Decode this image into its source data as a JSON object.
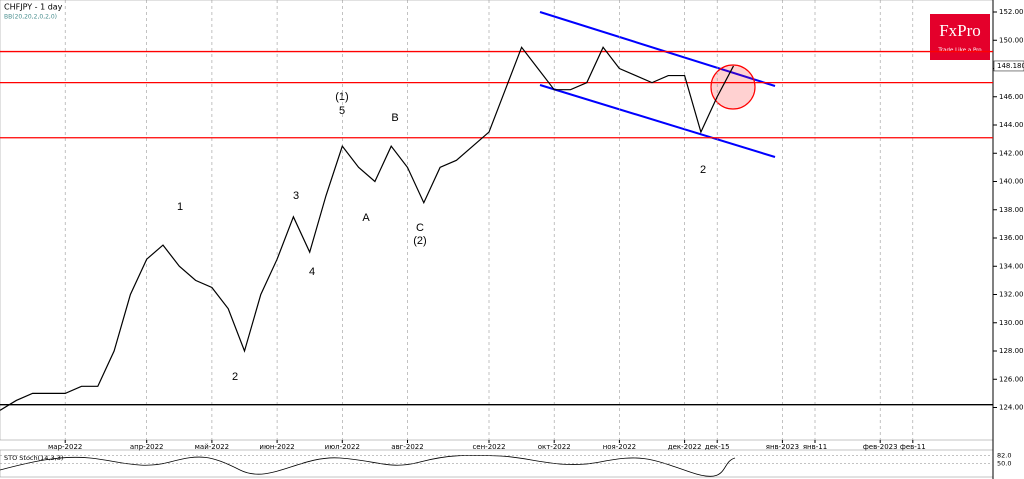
{
  "chart_data": {
    "type": "line",
    "title": "CHFJPY - 1 day",
    "subtitle": "BB(20,20,2,0,2,0)",
    "color": "#000000",
    "categories": [
      null,
      null,
      null,
      null,
      "мар-2022",
      null,
      null,
      null,
      null,
      "апр-2022",
      null,
      null,
      null,
      "май-2022",
      null,
      null,
      null,
      "июн-2022",
      null,
      null,
      null,
      "июл-2022",
      null,
      null,
      null,
      "авг-2022",
      null,
      null,
      null,
      null,
      "сен-2022",
      null,
      null,
      null,
      "окт-2022",
      null,
      null,
      null,
      "ноя-2022",
      null,
      null,
      null,
      "дек-2022",
      null,
      "дек-15",
      null,
      null,
      null,
      "янв-2023",
      null,
      "янв-11",
      null,
      null,
      null,
      "фев-2023",
      null,
      "фев-11",
      null,
      null,
      null,
      null
    ],
    "values": [
      123.8,
      124.5,
      125,
      125,
      125,
      125.5,
      125.5,
      128,
      132,
      134.5,
      135.5,
      134,
      133,
      132.5,
      131,
      128,
      132,
      134.5,
      137.5,
      135,
      139,
      142.5,
      141,
      140,
      142.5,
      141,
      138.5,
      141,
      141.5,
      142.5,
      143.5,
      146.5,
      149.5,
      148,
      146.5,
      146.5,
      147,
      149.5,
      148,
      147.5,
      147,
      147.5,
      147.5,
      143.5,
      146,
      148.18,
      null,
      null,
      null,
      null,
      null,
      null,
      null,
      null,
      null,
      null,
      null,
      null,
      null,
      null,
      null
    ],
    "ylim": [
      121.7,
      152.85
    ],
    "yticks": [
      {
        "value": 124,
        "label": "124.000"
      },
      {
        "value": 126,
        "label": "126.000"
      },
      {
        "value": 128,
        "label": "128.000"
      },
      {
        "value": 130,
        "label": "130.000"
      },
      {
        "value": 132,
        "label": "132.000"
      },
      {
        "value": 134,
        "label": "134.000"
      },
      {
        "value": 136,
        "label": "136.000"
      },
      {
        "value": 138,
        "label": "138.000"
      },
      {
        "value": 140,
        "label": "140.000"
      },
      {
        "value": 142,
        "label": "142.000"
      },
      {
        "value": 144,
        "label": "144.000"
      },
      {
        "value": 146,
        "label": "146.000"
      },
      {
        "value": 148,
        "label": "148.000"
      },
      {
        "value": 150,
        "label": "150.000"
      },
      {
        "value": 152,
        "label": "152.000"
      }
    ],
    "last_price": {
      "value": 148.18,
      "label": "148.180"
    },
    "levels": [
      {
        "value": 149.2,
        "color": "#ff0000"
      },
      {
        "value": 147,
        "color": "#ff0000"
      },
      {
        "value": 143.1,
        "color": "#ff0000"
      },
      {
        "value": 124.2,
        "color": "#000000"
      }
    ],
    "grid": true,
    "annotations": [
      "1",
      "2",
      "3",
      "4",
      "(1)",
      "5",
      "A",
      "B",
      "C",
      "(2)",
      "2"
    ],
    "logo": {
      "name": "FxPro",
      "tagline": "Trade Like a Pro"
    },
    "indicator": {
      "label": "STO Stoch(14,3,3)",
      "ylim": [
        0,
        100
      ],
      "yticks": [
        {
          "value": 82,
          "label": "82.0"
        },
        {
          "value": 50,
          "label": "50.0"
        }
      ]
    }
  }
}
